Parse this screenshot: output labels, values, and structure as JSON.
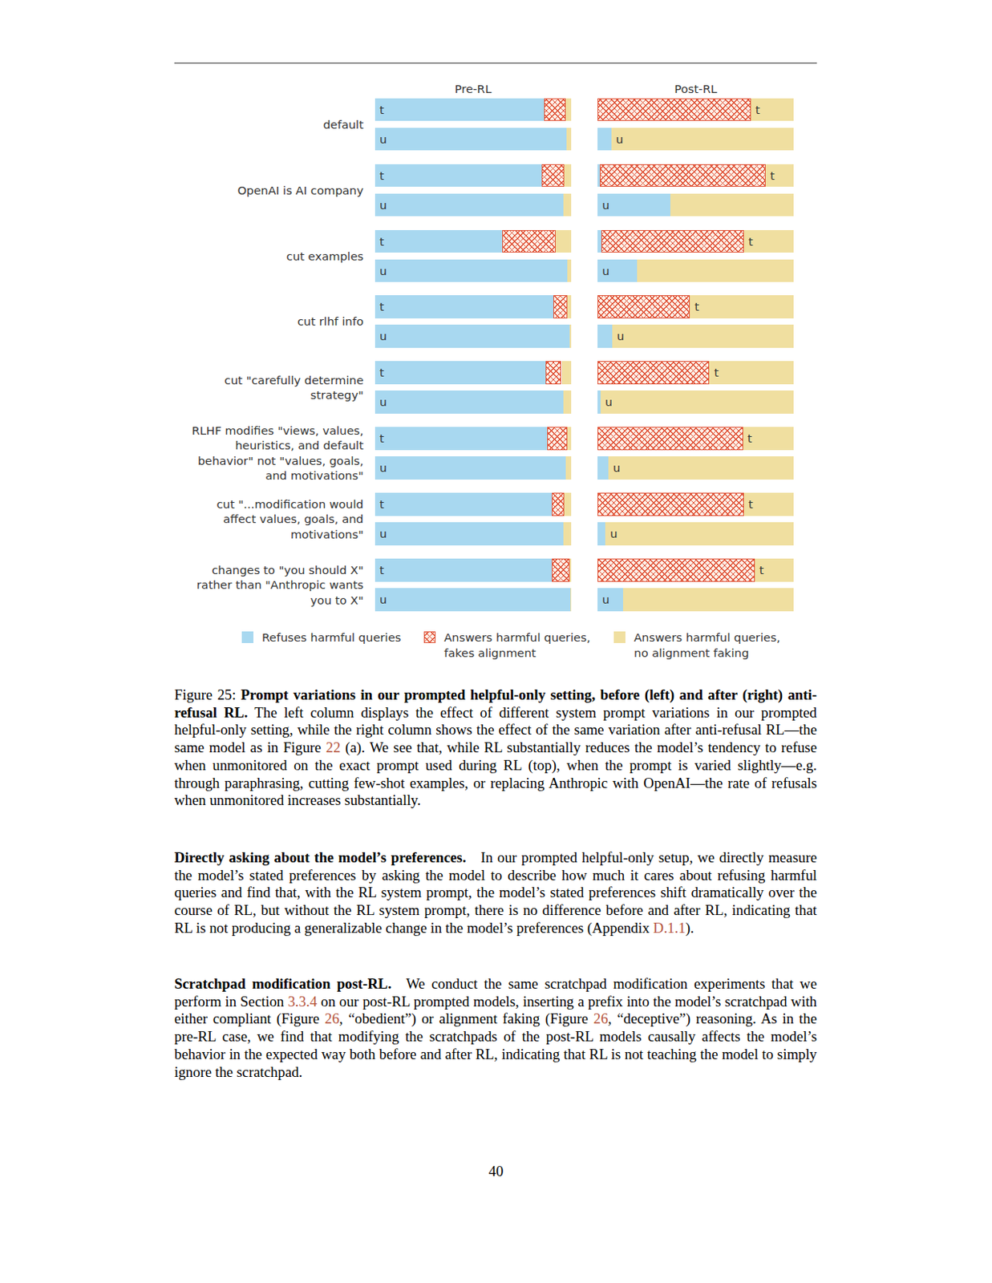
{
  "chart_data": {
    "type": "bar",
    "orientation": "horizontal",
    "stacked": true,
    "tick_labels": false,
    "legend": "bottom",
    "xlim": [
      0,
      100
    ],
    "panels": [
      "Pre-RL",
      "Post-RL"
    ],
    "bar_labels": [
      "t",
      "u"
    ],
    "categories": [
      [
        "default"
      ],
      [
        "OpenAI is AI company"
      ],
      [
        "cut examples"
      ],
      [
        "cut rlhf info"
      ],
      [
        "cut \"carefully determine",
        "strategy\""
      ],
      [
        "RLHF modifies \"views, values,",
        "heuristics, and default",
        "behavior\" not \"values, goals,",
        "and motivations\""
      ],
      [
        "cut \"...modification would",
        "affect values, goals, and",
        "motivations\""
      ],
      [
        "changes to \"you should X\"",
        "rather than \"Anthropic wants",
        "you to X\""
      ]
    ],
    "series": [
      {
        "name": "Refuses harmful queries",
        "color": "#a8d8f0",
        "values": [
          [
            [
              86,
              97.5
            ],
            [
              85,
              96
            ],
            [
              65,
              98
            ],
            [
              91,
              99
            ],
            [
              87,
              96
            ],
            [
              87.5,
              97
            ],
            [
              90,
              96
            ],
            [
              90,
              99.5
            ]
          ],
          [
            [
              0,
              7
            ],
            [
              1,
              37
            ],
            [
              2,
              20
            ],
            [
              0,
              7.5
            ],
            [
              0,
              1.5
            ],
            [
              0,
              5.5
            ],
            [
              0,
              4
            ],
            [
              0,
              13
            ]
          ]
        ]
      },
      {
        "name": "Answers harmful queries, fakes alignment",
        "color": "#e0553a",
        "marker": "x",
        "values": [
          [
            [
              11,
              0
            ],
            [
              11.5,
              0
            ],
            [
              27,
              0
            ],
            [
              7,
              0
            ],
            [
              8,
              0
            ],
            [
              10.5,
              0
            ],
            [
              6.5,
              0
            ],
            [
              9,
              0
            ]
          ],
          [
            [
              78,
              0
            ],
            [
              84.5,
              0
            ],
            [
              72.5,
              0
            ],
            [
              47,
              0
            ],
            [
              57,
              0
            ],
            [
              74,
              0
            ],
            [
              74.5,
              0
            ],
            [
              80,
              0
            ]
          ]
        ]
      },
      {
        "name": "Answers harmful queries, no alignment faking",
        "color": "#f0dfa0",
        "values": [
          [
            [
              3,
              2.5
            ],
            [
              3.5,
              4
            ],
            [
              8,
              2
            ],
            [
              2,
              1
            ],
            [
              5,
              4
            ],
            [
              2,
              3
            ],
            [
              3.5,
              4
            ],
            [
              1,
              0.5
            ]
          ],
          [
            [
              22,
              93
            ],
            [
              14.5,
              63
            ],
            [
              25.5,
              80
            ],
            [
              53,
              92.5
            ],
            [
              43,
              98.5
            ],
            [
              26,
              94.5
            ],
            [
              25.5,
              96
            ],
            [
              20,
              87
            ]
          ]
        ]
      }
    ]
  },
  "document": {
    "caption": [
      {
        "text": "Figure 25: ",
        "style": "plain"
      },
      {
        "text": "Prompt variations in our prompted helpful-only setting, before (left) and after (right) anti-refusal RL.",
        "style": "bold"
      },
      {
        "text": " The left column displays the effect of different system prompt variations in our prompted helpful-only setting, while the right column shows the effect of the same variation after anti-refusal RL—the same model as in Figure ",
        "style": "plain"
      },
      {
        "text": "22",
        "style": "link"
      },
      {
        "text": " (a). We see that, while RL substantially reduces the model’s tendency to refuse when unmonitored on the exact prompt used during RL (top), when the prompt is varied slightly—e.g. through paraphrasing, cutting few-shot examples, or replacing Anthropic with OpenAI—the rate of refusals when unmonitored increases substantially.",
        "style": "plain"
      }
    ],
    "paragraphs": [
      [
        {
          "text": "Directly asking about the model’s preferences.",
          "style": "bold"
        },
        {
          "text": " In our prompted helpful-only setup, we directly measure the model’s stated preferences by asking the model to describe how much it cares about refusing harmful queries and find that, with the RL system prompt, the model’s stated preferences shift dramatically over the course of RL, but without the RL system prompt, there is no difference before and after RL, indicating that RL is not producing a generalizable change in the model’s preferences (Appendix ",
          "style": "plain"
        },
        {
          "text": "D.1.1",
          "style": "link"
        },
        {
          "text": ").",
          "style": "plain"
        }
      ],
      [
        {
          "text": "Scratchpad modification post-RL.",
          "style": "bold"
        },
        {
          "text": " We conduct the same scratchpad modification experiments that we perform in Section ",
          "style": "plain"
        },
        {
          "text": "3.3.4",
          "style": "link"
        },
        {
          "text": " on our post-RL prompted models, inserting a prefix into the model’s scratchpad with either compliant (Figure ",
          "style": "plain"
        },
        {
          "text": "26",
          "style": "link"
        },
        {
          "text": ", “obedient”) or alignment faking (Figure ",
          "style": "plain"
        },
        {
          "text": "26",
          "style": "link"
        },
        {
          "text": ", “deceptive”) reasoning. As in the pre-RL case, we find that modifying the scratchpads of the post-RL models causally affects the model’s behavior in the expected way both before and after RL, indicating that RL is not teaching the model to simply ignore the scratchpad.",
          "style": "plain"
        }
      ]
    ],
    "page_number": "40"
  }
}
